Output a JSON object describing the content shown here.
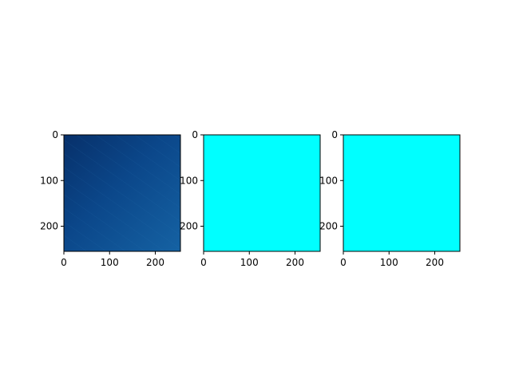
{
  "chart_data": [
    {
      "type": "heatmap",
      "title": "",
      "xlabel": "",
      "ylabel": "",
      "xlim": [
        0,
        255
      ],
      "ylim": [
        255,
        0
      ],
      "xticks": [
        0,
        100,
        200
      ],
      "yticks": [
        0,
        100,
        200
      ],
      "xtick_labels": [
        "0",
        "100",
        "200"
      ],
      "ytick_labels": [
        "0",
        "100",
        "200"
      ],
      "image_size": [
        256,
        256
      ],
      "appearance": "dark blue textured image, brighter toward lower right",
      "colors": {
        "fill": "#0d4f8f",
        "highlight": "#1e6aa8",
        "shadow": "#08336b"
      }
    },
    {
      "type": "heatmap",
      "title": "",
      "xlabel": "",
      "ylabel": "",
      "xlim": [
        0,
        255
      ],
      "ylim": [
        255,
        0
      ],
      "xticks": [
        0,
        100,
        200
      ],
      "yticks": [
        0,
        100,
        200
      ],
      "xtick_labels": [
        "0",
        "100",
        "200"
      ],
      "ytick_labels": [
        "0",
        "100",
        "200"
      ],
      "image_size": [
        256,
        256
      ],
      "appearance": "uniform cyan",
      "colors": {
        "fill": "#00ffff"
      }
    },
    {
      "type": "heatmap",
      "title": "",
      "xlabel": "",
      "ylabel": "",
      "xlim": [
        0,
        255
      ],
      "ylim": [
        255,
        0
      ],
      "xticks": [
        0,
        100,
        200
      ],
      "yticks": [
        0,
        100,
        200
      ],
      "xtick_labels": [
        "0",
        "100",
        "200"
      ],
      "ytick_labels": [
        "0",
        "100",
        "200"
      ],
      "image_size": [
        256,
        256
      ],
      "appearance": "uniform cyan",
      "colors": {
        "fill": "#00ffff"
      }
    }
  ]
}
